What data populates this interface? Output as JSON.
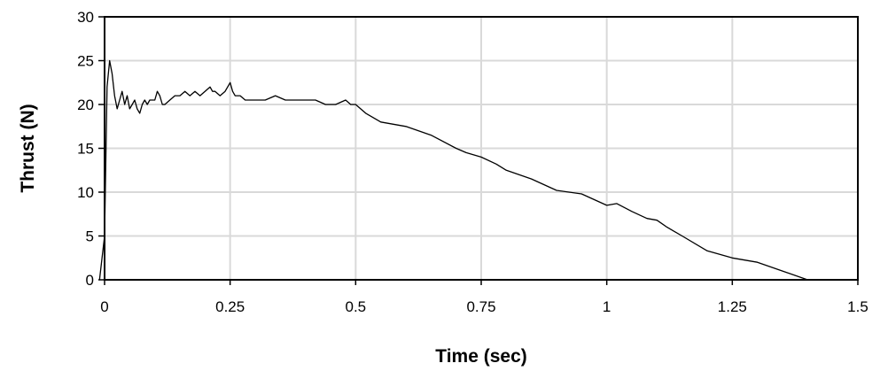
{
  "chart_data": {
    "type": "line",
    "title": "",
    "xlabel": "Time (sec)",
    "ylabel": "Thrust (N)",
    "xlim": [
      0,
      1.5
    ],
    "ylim": [
      0,
      30
    ],
    "x_ticks": [
      0,
      0.25,
      0.5,
      0.75,
      1,
      1.25,
      1.5
    ],
    "x_tick_labels": [
      "0",
      "0.25",
      "0.5",
      "0.75",
      "1",
      "1.25",
      "1.5"
    ],
    "y_ticks": [
      0,
      5,
      10,
      15,
      20,
      25,
      30
    ],
    "y_tick_labels": [
      "0",
      "5",
      "10",
      "15",
      "20",
      "25",
      "30"
    ],
    "grid": true,
    "line_color": "#000000",
    "grid_color": "#d9d9d9",
    "series": [
      {
        "x": [
          -0.01,
          0.0,
          0.005,
          0.01,
          0.015,
          0.02,
          0.025,
          0.03,
          0.035,
          0.04,
          0.045,
          0.05,
          0.055,
          0.06,
          0.065,
          0.07,
          0.075,
          0.08,
          0.085,
          0.09,
          0.095,
          0.1,
          0.105,
          0.11,
          0.115,
          0.12,
          0.13,
          0.14,
          0.15,
          0.16,
          0.17,
          0.18,
          0.19,
          0.2,
          0.21,
          0.215,
          0.22,
          0.23,
          0.24,
          0.25,
          0.255,
          0.26,
          0.27,
          0.28,
          0.3,
          0.32,
          0.34,
          0.36,
          0.38,
          0.4,
          0.42,
          0.44,
          0.46,
          0.48,
          0.49,
          0.5,
          0.52,
          0.55,
          0.6,
          0.65,
          0.7,
          0.72,
          0.75,
          0.78,
          0.8,
          0.85,
          0.9,
          0.95,
          1.0,
          1.02,
          1.05,
          1.08,
          1.1,
          1.12,
          1.15,
          1.2,
          1.25,
          1.3,
          1.35,
          1.4
        ],
        "y": [
          0,
          5,
          22,
          25,
          23.5,
          21,
          19.5,
          20.5,
          21.5,
          20,
          21,
          19.5,
          20,
          20.5,
          19.5,
          19,
          20,
          20.5,
          20,
          20.5,
          20.5,
          20.5,
          21.5,
          21,
          20,
          20,
          20.5,
          21,
          21,
          21.5,
          21,
          21.5,
          21,
          21.5,
          22,
          21.5,
          21.5,
          21,
          21.5,
          22.5,
          21.5,
          21,
          21,
          20.5,
          20.5,
          20.5,
          21,
          20.5,
          20.5,
          20.5,
          20.5,
          20,
          20,
          20.5,
          20,
          20,
          19,
          18,
          17.5,
          16.5,
          15,
          14.5,
          14,
          13.2,
          12.5,
          11.5,
          10.2,
          9.8,
          8.5,
          8.7,
          7.8,
          7,
          6.8,
          6,
          5,
          3.3,
          2.5,
          2,
          1,
          0
        ]
      }
    ]
  }
}
